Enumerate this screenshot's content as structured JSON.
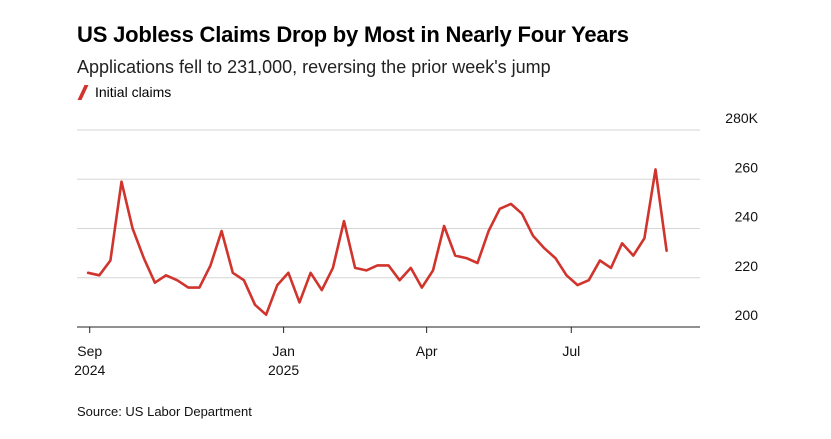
{
  "title": "US Jobless Claims Drop by Most in Nearly Four Years",
  "subtitle": "Applications fell to 231,000, reversing the prior week's jump",
  "source": "Source: US Labor Department",
  "chart_data": {
    "type": "line",
    "title": "US Jobless Claims Drop by Most in Nearly Four Years",
    "subtitle": "Applications fell to 231,000, reversing the prior week's jump",
    "legend": "top-left",
    "grid": true,
    "color": "#d0342c",
    "ylim": [
      200,
      280
    ],
    "yticks": [
      {
        "value": 200,
        "label": "200"
      },
      {
        "value": 220,
        "label": "220"
      },
      {
        "value": 240,
        "label": "240"
      },
      {
        "value": 260,
        "label": "260"
      },
      {
        "value": 280,
        "label": "280K"
      }
    ],
    "xticks": [
      {
        "date": "2024-09-01",
        "label": [
          "Sep",
          "2024"
        ]
      },
      {
        "date": "2025-01-01",
        "label": [
          "Jan",
          "2025"
        ]
      },
      {
        "date": "2025-04-01",
        "label": [
          "Apr",
          ""
        ]
      },
      {
        "date": "2025-07-01",
        "label": [
          "Jul",
          ""
        ]
      }
    ],
    "xlim": [
      "2024-08-24",
      "2025-09-20"
    ],
    "series": [
      {
        "name": "Initial claims",
        "points": [
          [
            "2024-08-31",
            222
          ],
          [
            "2024-09-07",
            221
          ],
          [
            "2024-09-14",
            227
          ],
          [
            "2024-09-21",
            259
          ],
          [
            "2024-09-28",
            240
          ],
          [
            "2024-10-05",
            228
          ],
          [
            "2024-10-12",
            218
          ],
          [
            "2024-10-19",
            221
          ],
          [
            "2024-10-26",
            219
          ],
          [
            "2024-11-02",
            216
          ],
          [
            "2024-11-09",
            216
          ],
          [
            "2024-11-16",
            225
          ],
          [
            "2024-11-23",
            239
          ],
          [
            "2024-11-30",
            222
          ],
          [
            "2024-12-07",
            219
          ],
          [
            "2024-12-14",
            209
          ],
          [
            "2024-12-21",
            205
          ],
          [
            "2024-12-28",
            217
          ],
          [
            "2025-01-04",
            222
          ],
          [
            "2025-01-11",
            210
          ],
          [
            "2025-01-18",
            222
          ],
          [
            "2025-01-25",
            215
          ],
          [
            "2025-02-01",
            224
          ],
          [
            "2025-02-08",
            243
          ],
          [
            "2025-02-15",
            224
          ],
          [
            "2025-02-22",
            223
          ],
          [
            "2025-03-01",
            225
          ],
          [
            "2025-03-08",
            225
          ],
          [
            "2025-03-15",
            219
          ],
          [
            "2025-03-22",
            224
          ],
          [
            "2025-03-29",
            216
          ],
          [
            "2025-04-05",
            223
          ],
          [
            "2025-04-12",
            241
          ],
          [
            "2025-04-19",
            229
          ],
          [
            "2025-04-26",
            228
          ],
          [
            "2025-05-03",
            226
          ],
          [
            "2025-05-10",
            239
          ],
          [
            "2025-05-17",
            248
          ],
          [
            "2025-05-24",
            250
          ],
          [
            "2025-05-31",
            246
          ],
          [
            "2025-06-07",
            237
          ],
          [
            "2025-06-14",
            232
          ],
          [
            "2025-06-21",
            228
          ],
          [
            "2025-06-28",
            221
          ],
          [
            "2025-07-05",
            217
          ],
          [
            "2025-07-12",
            219
          ],
          [
            "2025-07-19",
            227
          ],
          [
            "2025-07-26",
            224
          ],
          [
            "2025-08-02",
            234
          ],
          [
            "2025-08-09",
            229
          ],
          [
            "2025-08-16",
            236
          ],
          [
            "2025-08-23",
            264
          ],
          [
            "2025-08-30",
            231
          ]
        ]
      }
    ]
  }
}
